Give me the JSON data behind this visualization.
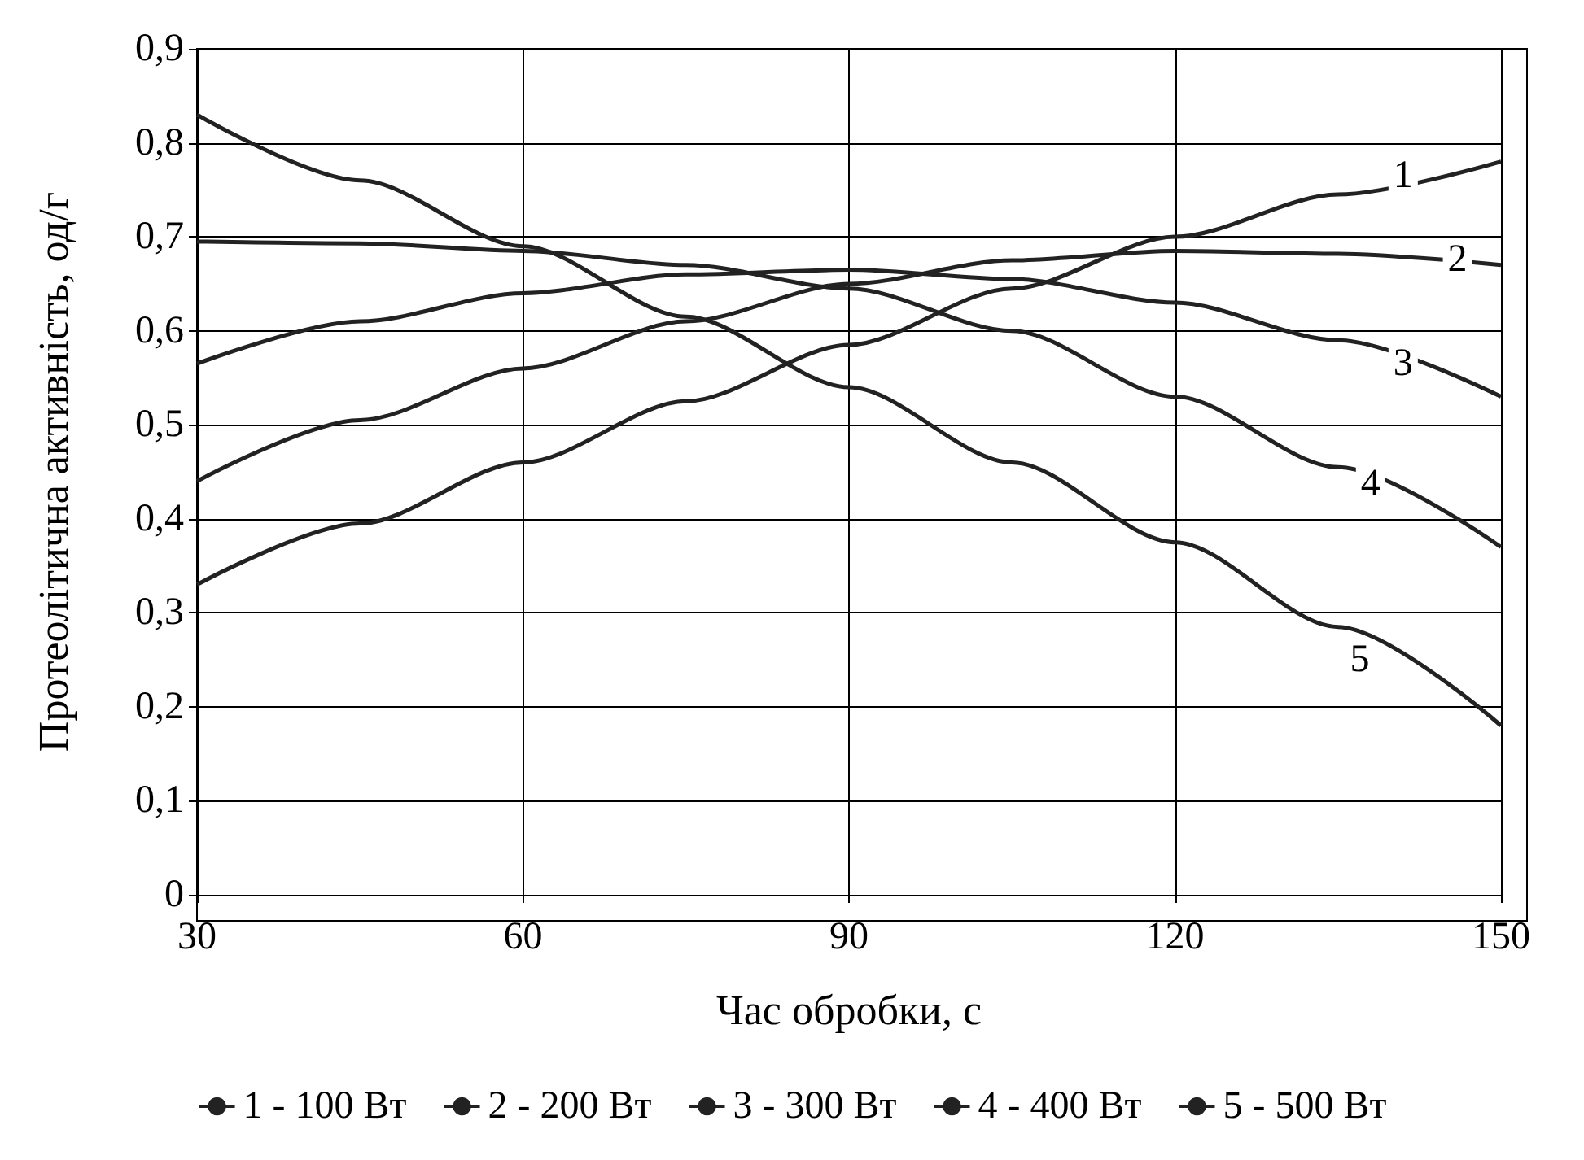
{
  "chart_data": {
    "type": "line",
    "xlabel": "Час обробки, с",
    "ylabel": "Протеолітична активність, од/г",
    "x": [
      30,
      45,
      60,
      75,
      90,
      105,
      120,
      135,
      150
    ],
    "series": [
      {
        "name": "1 - 100 Вт",
        "color": "#222222",
        "values": [
          0.33,
          0.395,
          0.46,
          0.525,
          0.585,
          0.645,
          0.7,
          0.745,
          0.78
        ]
      },
      {
        "name": "2 - 200 Вт",
        "color": "#222222",
        "values": [
          0.44,
          0.505,
          0.56,
          0.61,
          0.65,
          0.675,
          0.685,
          0.682,
          0.67
        ]
      },
      {
        "name": "3 - 300 Вт",
        "color": "#222222",
        "values": [
          0.565,
          0.61,
          0.64,
          0.66,
          0.665,
          0.655,
          0.63,
          0.59,
          0.53
        ]
      },
      {
        "name": "4 - 400 Вт",
        "color": "#222222",
        "values": [
          0.695,
          0.693,
          0.685,
          0.67,
          0.645,
          0.6,
          0.53,
          0.455,
          0.37
        ]
      },
      {
        "name": "5 - 500 Вт",
        "color": "#222222",
        "values": [
          0.83,
          0.76,
          0.69,
          0.615,
          0.54,
          0.46,
          0.375,
          0.285,
          0.18
        ]
      }
    ],
    "xlim": [
      30,
      150
    ],
    "xticks": [
      30,
      60,
      90,
      120,
      150
    ],
    "ylim": [
      0,
      0.9
    ],
    "yticks": [
      0,
      {
        "value": 0.1,
        "label": "0,1"
      },
      {
        "value": 0.2,
        "label": "0,2"
      },
      {
        "value": 0.3,
        "label": "0,3"
      },
      {
        "value": 0.4,
        "label": "0,4"
      },
      {
        "value": 0.5,
        "label": "0,5"
      },
      {
        "value": 0.6,
        "label": "0,6"
      },
      {
        "value": 0.7,
        "label": "0,7"
      },
      {
        "value": 0.8,
        "label": "0,8"
      },
      {
        "value": 0.9,
        "label": "0,9"
      }
    ],
    "annotations": [
      {
        "text": "1",
        "x": 141,
        "y": 0.765
      },
      {
        "text": "2",
        "x": 146,
        "y": 0.676
      },
      {
        "text": "3",
        "x": 141,
        "y": 0.565
      },
      {
        "text": "4",
        "x": 138,
        "y": 0.437
      },
      {
        "text": "5",
        "x": 137,
        "y": 0.25
      }
    ],
    "grid": true,
    "legend": "bottom",
    "marker": "none",
    "line_style": "solid"
  }
}
